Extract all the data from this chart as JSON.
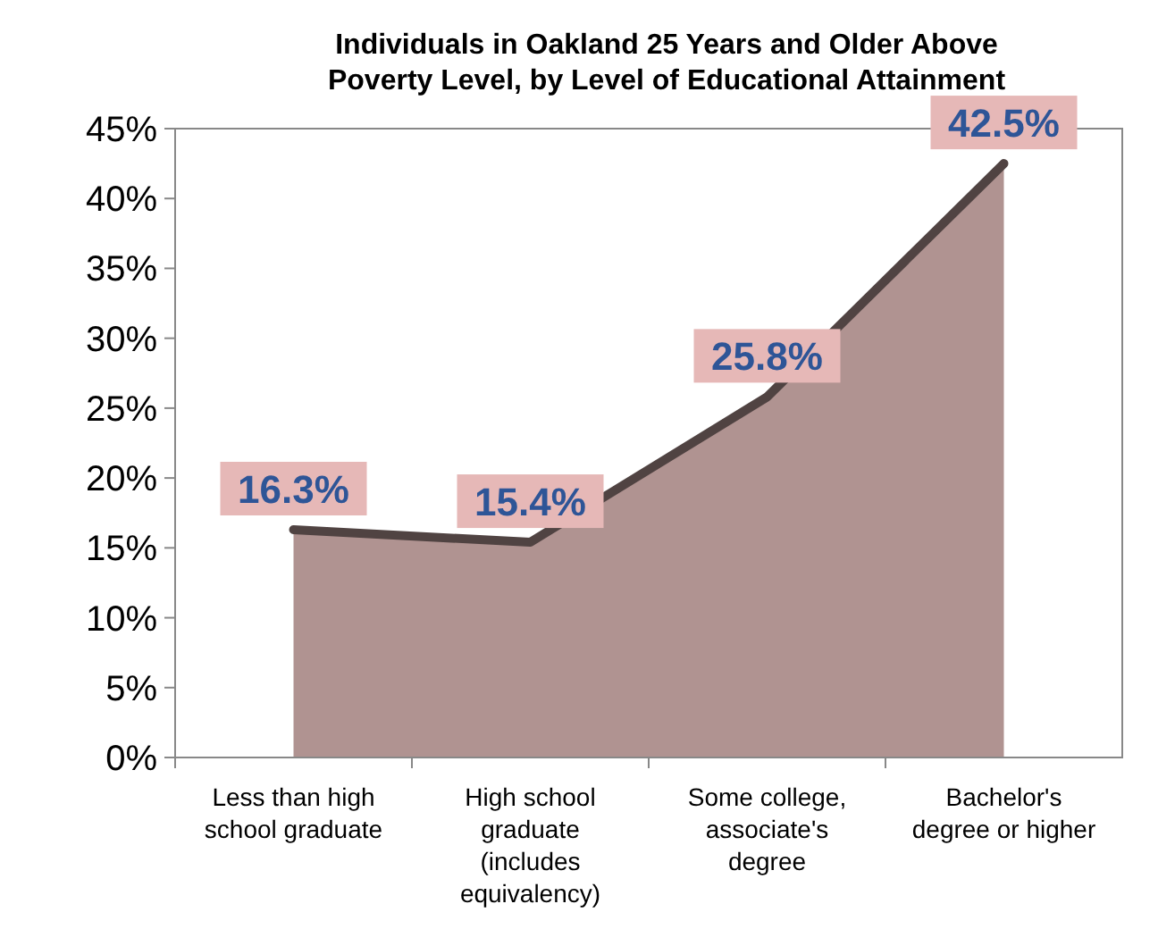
{
  "chart_data": {
    "type": "area",
    "title": "Individuals in Oakland 25 Years and Older Above Poverty Level, by Level of Educational Attainment",
    "categories": [
      "Less than high school graduate",
      "High school graduate (includes equivalency)",
      "Some college, associate's degree",
      "Bachelor's degree or higher"
    ],
    "series": [
      {
        "color": "#b09391",
        "values": [
          16.3,
          15.4,
          25.8,
          42.5
        ],
        "value_labels": [
          "16.3%",
          "15.4%",
          "25.8%",
          "42.5%"
        ]
      }
    ],
    "ylim": [
      0,
      45
    ],
    "yticks": [
      {
        "value": 0,
        "label": "0%"
      },
      {
        "value": 5,
        "label": "5%"
      },
      {
        "value": 10,
        "label": "10%"
      },
      {
        "value": 15,
        "label": "15%"
      },
      {
        "value": 20,
        "label": "20%"
      },
      {
        "value": 25,
        "label": "25%"
      },
      {
        "value": 30,
        "label": "30%"
      },
      {
        "value": 35,
        "label": "35%"
      },
      {
        "value": 40,
        "label": "40%"
      },
      {
        "value": 45,
        "label": "45%"
      }
    ],
    "grid": false
  }
}
